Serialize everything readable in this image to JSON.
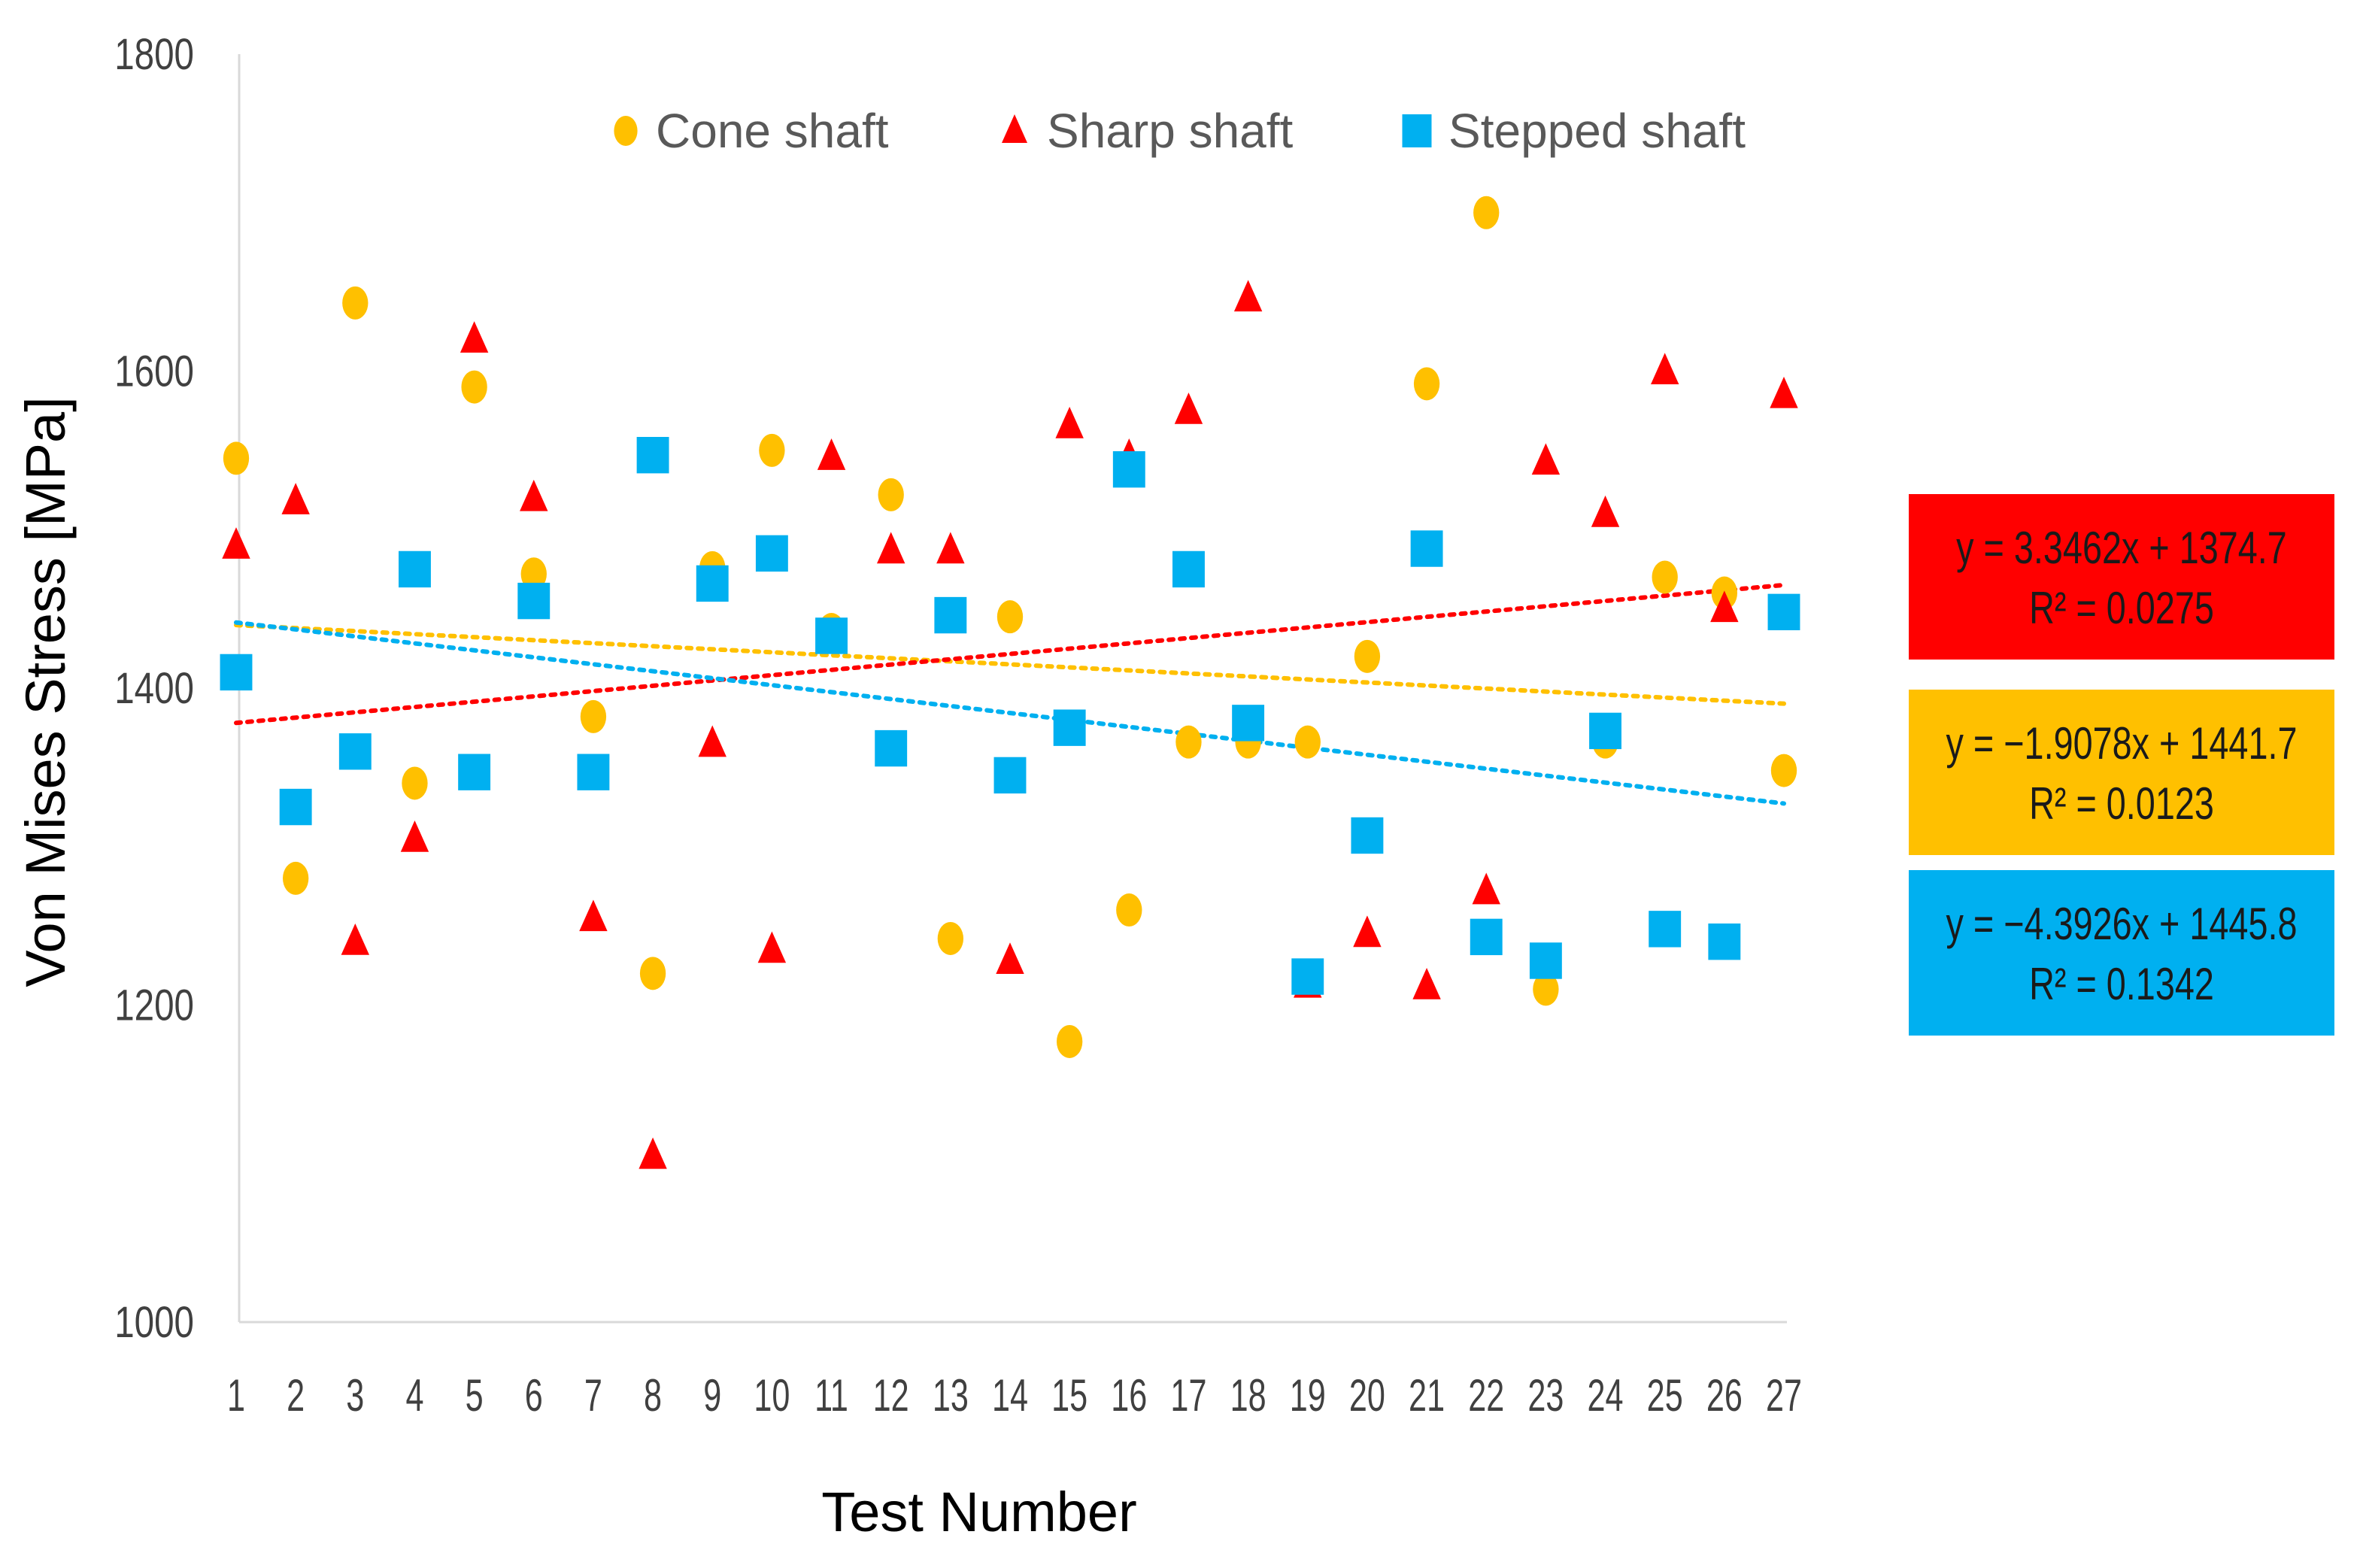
{
  "chart_data": {
    "type": "scatter",
    "xlabel": "Test Number",
    "ylabel": "Von Mises Stress [MPa]",
    "xlim": [
      1,
      27
    ],
    "ylim": [
      1000,
      1800
    ],
    "y_ticks": [
      1000,
      1200,
      1400,
      1600,
      1800
    ],
    "x_ticks": [
      1,
      2,
      3,
      4,
      5,
      6,
      7,
      8,
      9,
      10,
      11,
      12,
      13,
      14,
      15,
      16,
      17,
      18,
      19,
      20,
      21,
      22,
      23,
      24,
      25,
      26,
      27
    ],
    "grid": false,
    "legend_position": "top",
    "series": [
      {
        "name": "Cone shaft",
        "marker": "circle",
        "color": "#FFC000",
        "x": [
          1,
          2,
          3,
          4,
          5,
          6,
          7,
          8,
          9,
          10,
          11,
          12,
          13,
          14,
          15,
          16,
          17,
          18,
          19,
          20,
          21,
          22,
          23,
          24,
          25,
          26,
          27
        ],
        "values": [
          1545,
          1280,
          1643,
          1340,
          1590,
          1472,
          1382,
          1220,
          1476,
          1550,
          1437,
          1522,
          1242,
          1445,
          1177,
          1260,
          1366,
          1366,
          1366,
          1420,
          1592,
          1700,
          1210,
          1366,
          1470,
          1460,
          1348
        ],
        "trendline": {
          "slope": -1.9078,
          "intercept": 1441.7,
          "equation": "y = −1.9078x + 1441.7",
          "r2": "R² = 0.0123"
        }
      },
      {
        "name": "Sharp shaft",
        "marker": "triangle",
        "color": "#FF0000",
        "x": [
          1,
          2,
          3,
          4,
          5,
          6,
          7,
          8,
          9,
          10,
          11,
          12,
          13,
          14,
          15,
          16,
          17,
          18,
          19,
          20,
          21,
          22,
          23,
          24,
          25,
          26,
          27
        ],
        "values": [
          1490,
          1518,
          1240,
          1305,
          1620,
          1520,
          1255,
          1105,
          1365,
          1235,
          1546,
          1487,
          1487,
          1228,
          1566,
          1546,
          1575,
          1646,
          1213,
          1245,
          1212,
          1272,
          1543,
          1510,
          1600,
          1450,
          1585
        ],
        "trendline": {
          "slope": 3.3462,
          "intercept": 1374.7,
          "equation": "y = 3.3462x + 1374.7",
          "r2": "R² = 0.0275"
        }
      },
      {
        "name": "Stepped shaft",
        "marker": "square",
        "color": "#00B0F0",
        "x": [
          1,
          2,
          3,
          4,
          5,
          6,
          7,
          8,
          9,
          10,
          11,
          12,
          13,
          14,
          15,
          16,
          17,
          18,
          19,
          20,
          21,
          22,
          23,
          24,
          25,
          26,
          27
        ],
        "values": [
          1410,
          1325,
          1360,
          1475,
          1347,
          1455,
          1347,
          1547,
          1466,
          1485,
          1433,
          1362,
          1446,
          1345,
          1375,
          1538,
          1475,
          1378,
          1218,
          1307,
          1488,
          1243,
          1228,
          1373,
          1248,
          1240,
          1448
        ],
        "trendline": {
          "slope": -4.3926,
          "intercept": 1445.8,
          "equation": "y = −4.3926x + 1445.8",
          "r2": "R² = 0.1342"
        }
      }
    ]
  }
}
